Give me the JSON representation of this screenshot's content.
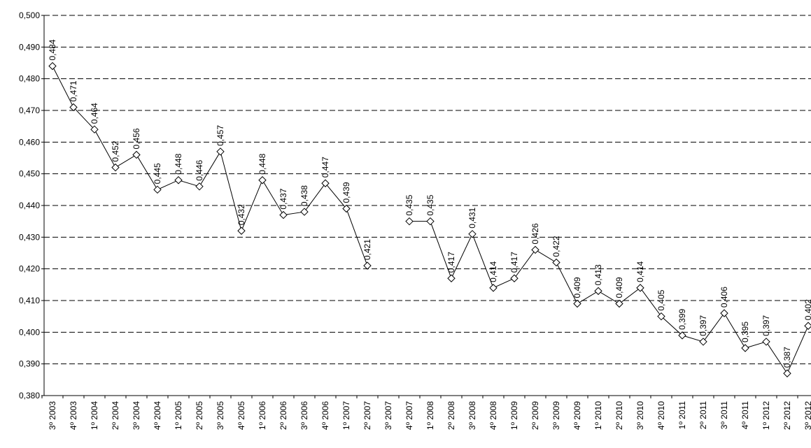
{
  "chart_data": {
    "type": "line",
    "categories": [
      "3º 2003",
      "4º 2003",
      "1º 2004",
      "2º 2004",
      "3º 2004",
      "4º 2004",
      "1º 2005",
      "2º 2005",
      "3º 2005",
      "4º 2005",
      "1º 2006",
      "2º 2006",
      "3º 2006",
      "4º 2006",
      "1º 2007",
      "2º 2007",
      "3º 2007",
      "4º 2007",
      "1º 2008",
      "2º 2008",
      "3º 2008",
      "4º 2008",
      "1º 2009",
      "2º 2009",
      "3º 2009",
      "4º 2009",
      "1º 2010",
      "2º 2010",
      "3º 2010",
      "4º 2010",
      "1º 2011",
      "2º 2011",
      "3º 2011",
      "4º 2011",
      "1º 2012",
      "2º 2012",
      "3º 2012"
    ],
    "values": [
      0.484,
      0.471,
      0.464,
      0.452,
      0.456,
      0.445,
      0.448,
      0.446,
      0.457,
      0.432,
      0.448,
      0.437,
      0.438,
      0.447,
      0.439,
      0.421,
      null,
      0.435,
      0.435,
      0.417,
      0.431,
      0.414,
      0.417,
      0.426,
      0.422,
      0.409,
      0.413,
      0.409,
      0.414,
      0.405,
      0.399,
      0.397,
      0.406,
      0.395,
      0.397,
      0.387,
      0.402
    ],
    "value_labels": [
      "0,484",
      "0,471",
      "0,464",
      "0,452",
      "0,456",
      "0,445",
      "0,448",
      "0,446",
      "0,457",
      "0,432",
      "0,448",
      "0,437",
      "0,438",
      "0,447",
      "0,439",
      "0,421",
      null,
      "0,435",
      "0,435",
      "0,417",
      "0,431",
      "0,414",
      "0,417",
      "0,426",
      "0,422",
      "0,409",
      "0,413",
      "0,409",
      "0,414",
      "0,405",
      "0,399",
      "0,397",
      "0,406",
      "0,395",
      "0,397",
      "0,387",
      "0,402"
    ],
    "color": "#000000",
    "ylim": [
      0.38,
      0.5
    ],
    "yticks": [
      {
        "value": 0.38,
        "label": "0,380"
      },
      {
        "value": 0.39,
        "label": "0,390"
      },
      {
        "value": 0.4,
        "label": "0,400"
      },
      {
        "value": 0.41,
        "label": "0,410"
      },
      {
        "value": 0.42,
        "label": "0,420"
      },
      {
        "value": 0.43,
        "label": "0,430"
      },
      {
        "value": 0.44,
        "label": "0,440"
      },
      {
        "value": 0.45,
        "label": "0,450"
      },
      {
        "value": 0.46,
        "label": "0,460"
      },
      {
        "value": 0.47,
        "label": "0,470"
      },
      {
        "value": 0.48,
        "label": "0,480"
      },
      {
        "value": 0.49,
        "label": "0,490"
      },
      {
        "value": 0.5,
        "label": "0,500"
      }
    ],
    "grid": true
  }
}
